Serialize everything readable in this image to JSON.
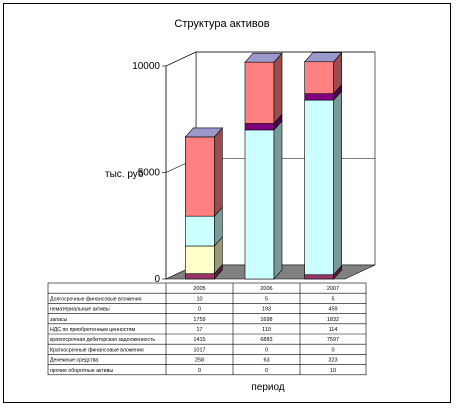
{
  "chart_data": {
    "type": "bar",
    "stacked": true,
    "three_d": true,
    "title": "Структура активов",
    "ylabel": "тыс. руб",
    "xlabel": "период",
    "ylim": [
      0,
      10000
    ],
    "yticks": [
      0,
      5000,
      10000
    ],
    "grid": true,
    "categories": [
      "2005",
      "2006",
      "2007"
    ],
    "series": [
      {
        "name": "Долгосрочные финансовые вложения",
        "values": [
          10,
          5,
          5
        ],
        "color": "#993366"
      },
      {
        "name": "нематериальные активы",
        "values": [
          0,
          193,
          459
        ],
        "color": "#800080"
      },
      {
        "name": "запасы",
        "values": [
          1759,
          1698,
          1832
        ],
        "color": "#ccffff"
      },
      {
        "name": "НДС по приобретенным ценностям",
        "values": [
          17,
          119,
          114
        ],
        "color": "#ffffcc"
      },
      {
        "name": "краткосрочная дебиторская задолженность",
        "values": [
          1415,
          6883,
          7597
        ],
        "color": "#ccffff"
      },
      {
        "name": "Краткосрочные финансовые вложения",
        "values": [
          1017,
          0,
          0
        ],
        "color": "#ffffcc"
      },
      {
        "name": "Денежные средства",
        "values": [
          258,
          63,
          323
        ],
        "color": "#ff8080"
      },
      {
        "name": "прочие оборотные активы",
        "values": [
          0,
          0,
          10
        ],
        "color": "#ff8080"
      }
    ],
    "segments": [
      [
        {
          "value": 250,
          "color": "#993366"
        },
        {
          "value": 1300,
          "color": "#ffffcc"
        },
        {
          "value": 1400,
          "color": "#ccffff"
        },
        {
          "value": 3720,
          "color": "#ff8080"
        }
      ],
      [
        {
          "value": 7000,
          "color": "#ccffff"
        },
        {
          "value": 300,
          "color": "#800080"
        },
        {
          "value": 2880,
          "color": "#ff8080"
        }
      ],
      [
        {
          "value": 200,
          "color": "#993366"
        },
        {
          "value": 8200,
          "color": "#ccffff"
        },
        {
          "value": 300,
          "color": "#800080"
        },
        {
          "value": 1500,
          "color": "#ff8080"
        }
      ]
    ]
  }
}
